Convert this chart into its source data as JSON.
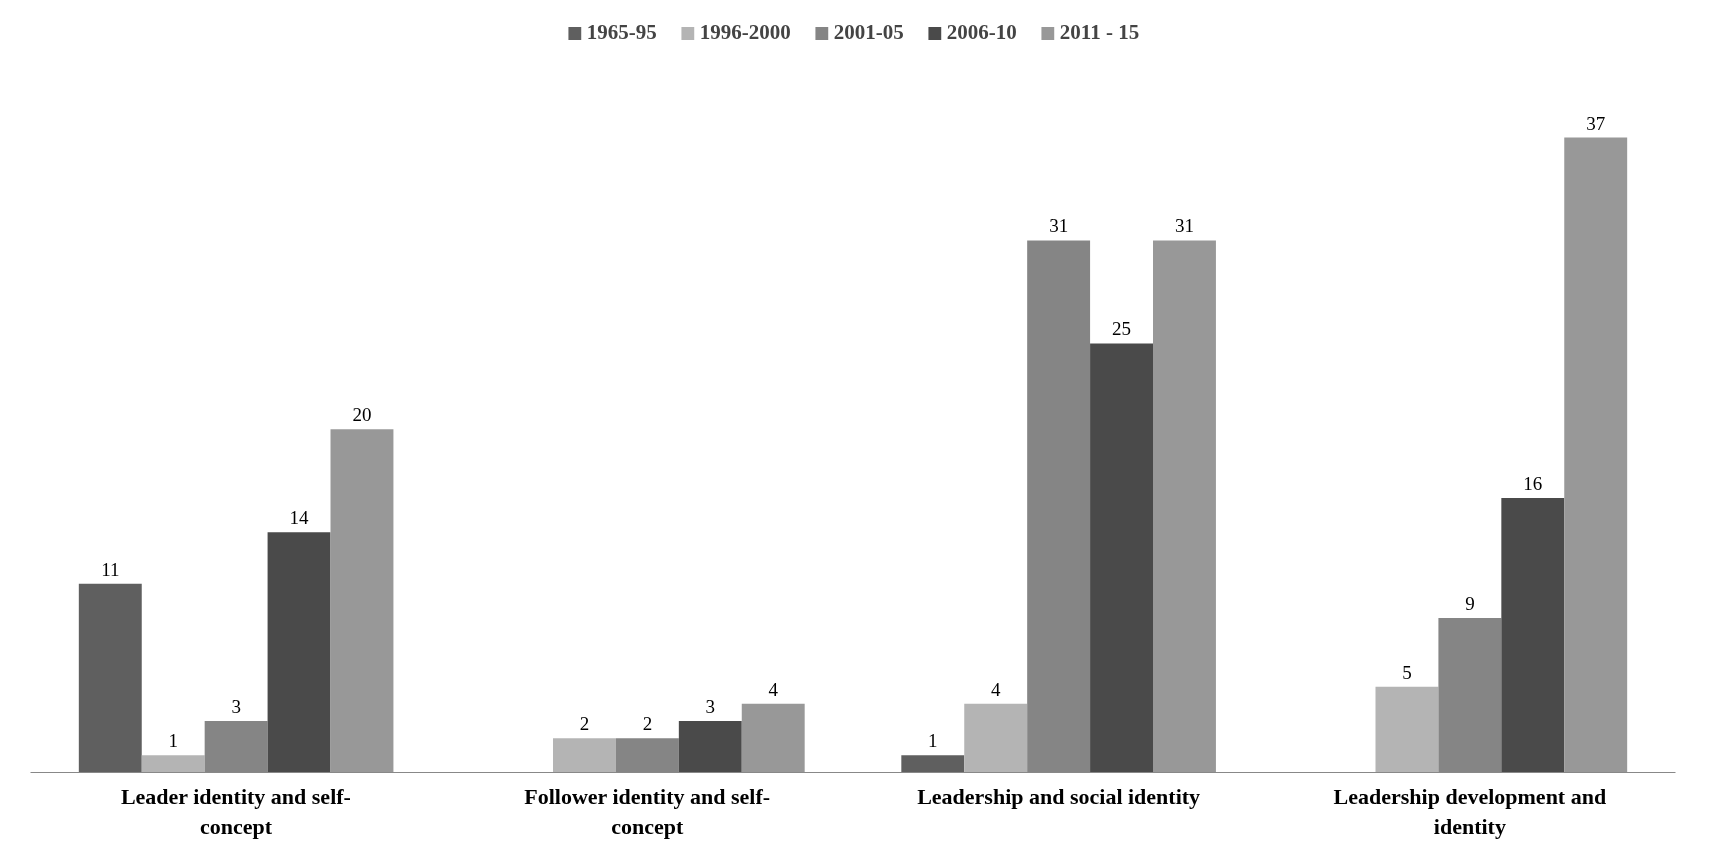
{
  "chart_data": {
    "type": "bar",
    "categories": [
      "Leader identity and self-concept",
      "Follower identity and self-concept",
      "Leadership and social identity",
      "Leadership development and identity"
    ],
    "series": [
      {
        "name": "1965-95",
        "color": "#5f5f5f",
        "values": [
          11,
          null,
          1,
          null
        ]
      },
      {
        "name": "1996-2000",
        "color": "#b4b4b4",
        "values": [
          1,
          2,
          4,
          5
        ]
      },
      {
        "name": "2001-05",
        "color": "#858585",
        "values": [
          3,
          2,
          31,
          9
        ]
      },
      {
        "name": "2006-10",
        "color": "#4a4a4a",
        "values": [
          14,
          3,
          25,
          16
        ]
      },
      {
        "name": "2011 - 15",
        "color": "#989898",
        "values": [
          20,
          4,
          31,
          37
        ]
      }
    ],
    "data_labels": true,
    "legend": "top",
    "grid": false
  }
}
